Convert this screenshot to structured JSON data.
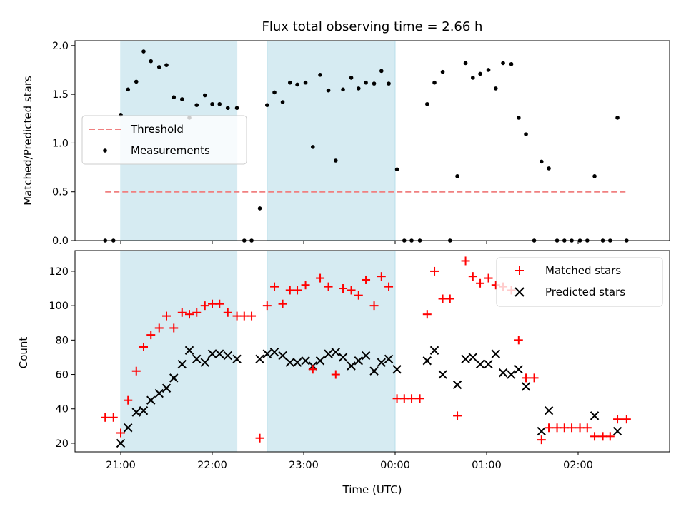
{
  "chart_data": [
    {
      "type": "scatter",
      "title": "Flux total observing time = 2.66 h",
      "xlabel": "",
      "ylabel": "Matched/Predicted stars",
      "x_units": "hours since 2024-01-01 00:00 UTC (20:50 = 20.83, 00:00 = 24, 02:30 = 26.5)",
      "xlim": [
        20.5,
        27.0
      ],
      "ylim": [
        0,
        2.05
      ],
      "yticks": [
        0.0,
        0.5,
        1.0,
        1.5,
        2.0
      ],
      "ytick_labels": [
        "0.0",
        "0.5",
        "1.0",
        "1.5",
        "2.0"
      ],
      "xticks": [
        21,
        22,
        23,
        24,
        25,
        26
      ],
      "shaded_spans": [
        [
          21.0,
          22.27
        ],
        [
          22.6,
          24.0
        ]
      ],
      "legend": {
        "position": "center-left",
        "entries": [
          "Threshold",
          "Measurements"
        ]
      },
      "threshold": {
        "name": "Threshold",
        "y": 0.5,
        "x": [
          20.83,
          26.53
        ],
        "color": "#f08080"
      },
      "series": [
        {
          "name": "Measurements",
          "color": "#000000",
          "x": [
            20.83,
            20.92,
            21.0,
            21.08,
            21.17,
            21.25,
            21.33,
            21.42,
            21.5,
            21.58,
            21.67,
            21.75,
            21.83,
            21.92,
            22.0,
            22.08,
            22.17,
            22.27,
            22.35,
            22.43,
            22.52,
            22.6,
            22.68,
            22.77,
            22.85,
            22.93,
            23.02,
            23.1,
            23.18,
            23.27,
            23.35,
            23.43,
            23.52,
            23.6,
            23.68,
            23.77,
            23.85,
            23.93,
            24.02,
            24.1,
            24.18,
            24.27,
            24.35,
            24.43,
            24.52,
            24.6,
            24.68,
            24.77,
            24.85,
            24.93,
            25.02,
            25.1,
            25.18,
            25.27,
            25.35,
            25.43,
            25.52,
            25.6,
            25.68,
            25.77,
            25.85,
            25.93,
            26.02,
            26.1,
            26.18,
            26.27,
            26.35,
            26.43,
            26.53
          ],
          "y": [
            0.0,
            0.0,
            1.29,
            1.55,
            1.63,
            1.94,
            1.84,
            1.78,
            1.8,
            1.47,
            1.45,
            1.26,
            1.39,
            1.49,
            1.4,
            1.4,
            1.36,
            1.36,
            0.0,
            0.0,
            0.33,
            1.39,
            1.52,
            1.42,
            1.62,
            1.6,
            1.62,
            0.96,
            1.7,
            1.54,
            0.82,
            1.55,
            1.67,
            1.56,
            1.62,
            1.61,
            1.74,
            1.61,
            0.73,
            0.0,
            0.0,
            0.0,
            1.4,
            1.62,
            1.73,
            0.0,
            0.66,
            1.82,
            1.67,
            1.71,
            1.75,
            1.56,
            1.82,
            1.81,
            1.26,
            1.09,
            0.0,
            0.81,
            0.74,
            0.0,
            0.0,
            0.0,
            0.0,
            0.0,
            0.66,
            0.0,
            0.0,
            1.26,
            0.0
          ]
        }
      ]
    },
    {
      "type": "scatter",
      "title": "",
      "xlabel": "Time (UTC)",
      "ylabel": "Count",
      "x_units": "hours since 2024-01-01 00:00 UTC",
      "xlim": [
        20.5,
        27.0
      ],
      "ylim": [
        15,
        132
      ],
      "yticks": [
        20,
        40,
        60,
        80,
        100,
        120
      ],
      "xticks": [
        21,
        22,
        23,
        24,
        25,
        26
      ],
      "xtick_labels": [
        "21:00",
        "22:00",
        "23:00",
        "00:00",
        "01:00",
        "02:00"
      ],
      "shaded_spans": [
        [
          21.0,
          22.27
        ],
        [
          22.6,
          24.0
        ]
      ],
      "legend": {
        "position": "top-right",
        "entries": [
          "Matched stars",
          "Predicted stars"
        ]
      },
      "series": [
        {
          "name": "Matched stars",
          "marker": "plus",
          "color": "#ff0000",
          "x": [
            20.83,
            20.92,
            21.0,
            21.08,
            21.17,
            21.25,
            21.33,
            21.42,
            21.5,
            21.58,
            21.67,
            21.75,
            21.83,
            21.92,
            22.0,
            22.08,
            22.17,
            22.27,
            22.35,
            22.43,
            22.52,
            22.6,
            22.68,
            22.77,
            22.85,
            22.93,
            23.02,
            23.1,
            23.18,
            23.27,
            23.35,
            23.43,
            23.52,
            23.6,
            23.68,
            23.77,
            23.85,
            23.93,
            24.02,
            24.1,
            24.18,
            24.27,
            24.35,
            24.43,
            24.52,
            24.6,
            24.68,
            24.77,
            24.85,
            24.93,
            25.02,
            25.1,
            25.18,
            25.27,
            25.35,
            25.43,
            25.52,
            25.6,
            25.68,
            25.77,
            25.85,
            25.93,
            26.02,
            26.1,
            26.18,
            26.27,
            26.35,
            26.43,
            26.53
          ],
          "y": [
            35,
            35,
            26,
            45,
            62,
            76,
            83,
            87,
            94,
            87,
            96,
            95,
            96,
            100,
            101,
            101,
            96,
            94,
            94,
            94,
            23,
            100,
            111,
            101,
            109,
            109,
            112,
            63,
            116,
            111,
            60,
            110,
            109,
            106,
            115,
            100,
            117,
            111,
            46,
            46,
            46,
            46,
            95,
            120,
            104,
            104,
            36,
            126,
            117,
            113,
            116,
            112,
            111,
            109,
            80,
            58,
            58,
            22,
            29,
            29,
            29,
            29,
            29,
            29,
            24,
            24,
            24,
            34,
            34
          ]
        },
        {
          "name": "Predicted stars",
          "marker": "x",
          "color": "#000000",
          "x": [
            21.0,
            21.08,
            21.17,
            21.25,
            21.33,
            21.42,
            21.5,
            21.58,
            21.67,
            21.75,
            21.83,
            21.92,
            22.0,
            22.08,
            22.17,
            22.27,
            22.52,
            22.6,
            22.68,
            22.77,
            22.85,
            22.93,
            23.02,
            23.1,
            23.18,
            23.27,
            23.35,
            23.43,
            23.52,
            23.6,
            23.68,
            23.77,
            23.85,
            23.93,
            24.02,
            24.35,
            24.43,
            24.52,
            24.68,
            24.77,
            24.85,
            24.93,
            25.02,
            25.1,
            25.18,
            25.27,
            25.35,
            25.43,
            25.6,
            25.68,
            26.18,
            26.43
          ],
          "y": [
            20,
            29,
            38,
            39,
            45,
            49,
            52,
            58,
            66,
            74,
            69,
            67,
            72,
            72,
            71,
            69,
            69,
            72,
            73,
            71,
            67,
            67,
            68,
            65,
            68,
            72,
            73,
            70,
            65,
            68,
            71,
            62,
            67,
            69,
            63,
            68,
            74,
            60,
            54,
            69,
            70,
            66,
            66,
            72,
            61,
            60,
            63,
            53,
            27,
            39,
            36,
            27
          ]
        }
      ]
    }
  ]
}
